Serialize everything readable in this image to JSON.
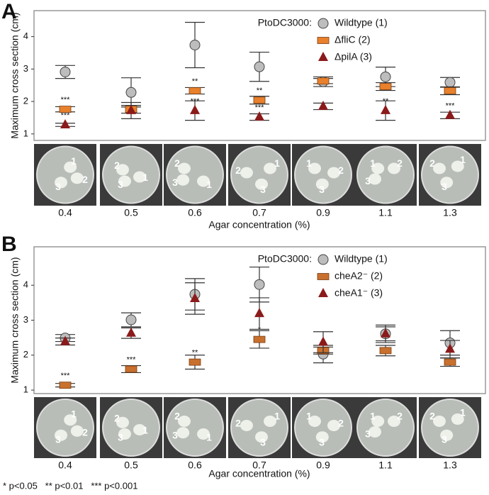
{
  "chart_data": [
    {
      "type": "errorbar",
      "panel": "A",
      "legend_title": "PtoDC3000:",
      "y_label": "Maximum cross section (cm)",
      "x_label": "Agar concentration (%)",
      "categories": [
        "0.4",
        "0.5",
        "0.6",
        "0.7",
        "0.9",
        "1.1",
        "1.3"
      ],
      "ylim": [
        0.8,
        4.8
      ],
      "yticks": [
        1,
        2,
        3,
        4
      ],
      "plate_labels": [
        "1",
        "2",
        "3"
      ],
      "series": [
        {
          "name": "Wildtype (1)",
          "marker": "circle",
          "color": "#bdbdbd",
          "values": [
            2.91,
            2.28,
            3.74,
            3.07,
            2.61,
            2.76,
            2.59
          ],
          "errors": [
            0.2,
            0.45,
            0.7,
            0.45,
            0.15,
            0.3,
            0.15
          ],
          "significance": [
            null,
            null,
            null,
            null,
            null,
            null,
            null
          ]
        },
        {
          "name": "ΔfliC (2)",
          "marker": "square",
          "color": "#e8802c",
          "values": [
            1.76,
            1.76,
            2.33,
            2.04,
            2.63,
            2.46,
            2.33
          ],
          "errors": [
            0.08,
            0.12,
            0.1,
            0.12,
            0.08,
            0.12,
            0.12
          ],
          "significance": [
            "***",
            null,
            "**",
            "**",
            null,
            null,
            null
          ]
        },
        {
          "name": "ΔpilA (3)",
          "marker": "triangle",
          "color": "#8b1a1a",
          "values": [
            1.28,
            1.72,
            1.72,
            1.52,
            1.85,
            1.72,
            1.57
          ],
          "errors": [
            0.05,
            0.25,
            0.3,
            0.1,
            0.1,
            0.3,
            0.1
          ],
          "significance": [
            "***",
            null,
            "***",
            "***",
            null,
            "**",
            "***"
          ]
        }
      ]
    },
    {
      "type": "errorbar",
      "panel": "B",
      "legend_title": "PtoDC3000:",
      "y_label": "Maximum cross section (cm)",
      "x_label": "Agar concentration (%)",
      "categories": [
        "0.4",
        "0.5",
        "0.6",
        "0.7",
        "0.9",
        "1.1",
        "1.3"
      ],
      "ylim": [
        0.9,
        5.1
      ],
      "yticks": [
        1,
        2,
        3,
        4
      ],
      "plate_labels": [
        "1",
        "2",
        "3"
      ],
      "series": [
        {
          "name": "Wildtype (1)",
          "marker": "circle",
          "color": "#bdbdbd",
          "values": [
            2.49,
            3.01,
            3.74,
            4.02,
            2.03,
            2.61,
            2.35
          ],
          "errors": [
            0.1,
            0.2,
            0.45,
            0.5,
            0.25,
            0.25,
            0.35
          ],
          "significance": [
            null,
            null,
            null,
            null,
            null,
            null,
            null
          ]
        },
        {
          "name": "cheA2⁻ (2)",
          "marker": "square",
          "color": "#c8702e",
          "values": [
            1.14,
            1.6,
            1.8,
            2.45,
            2.13,
            2.13,
            1.8
          ],
          "errors": [
            0.05,
            0.1,
            0.2,
            0.25,
            0.1,
            0.15,
            0.12
          ],
          "significance": [
            "***",
            "***",
            "**",
            "*",
            null,
            null,
            null
          ]
        },
        {
          "name": "cheA1⁻ (3)",
          "marker": "triangle",
          "color": "#8b1a1a",
          "values": [
            2.39,
            2.63,
            3.62,
            3.19,
            2.37,
            2.61,
            2.17
          ],
          "errors": [
            0.1,
            0.15,
            0.45,
            0.45,
            0.3,
            0.2,
            0.25
          ],
          "significance": [
            null,
            null,
            null,
            null,
            null,
            null,
            null
          ]
        }
      ]
    }
  ],
  "footnote": "* p<0.05   ** p<0.01   *** p<0.001"
}
